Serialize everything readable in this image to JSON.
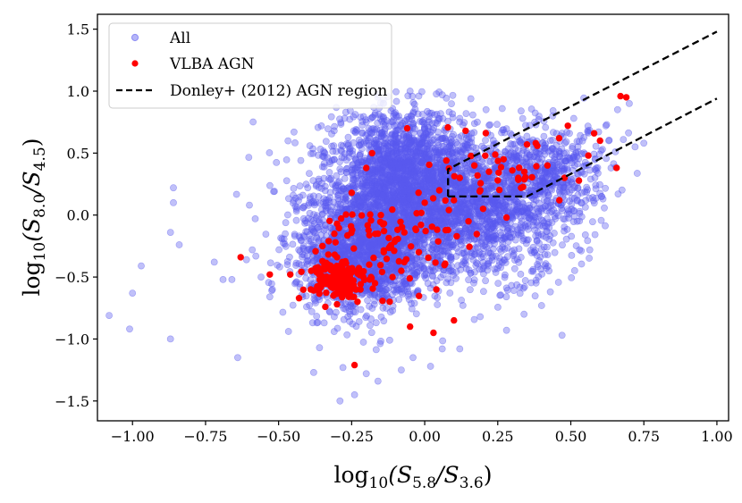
{
  "chart_data": {
    "type": "scatter",
    "title": "",
    "xlabel": {
      "base": "log",
      "base_sub": "10",
      "open": "(S",
      "num_sub": "5.8",
      "mid": "/S",
      "den_sub": "3.6",
      "close": ")"
    },
    "ylabel": {
      "base": "log",
      "base_sub": "10",
      "open": "(S",
      "num_sub": "8.0",
      "mid": "/S",
      "den_sub": "4.5",
      "close": ")"
    },
    "xlim": [
      -1.12,
      1.04
    ],
    "ylim": [
      -1.66,
      1.62
    ],
    "xticks": [
      -1.0,
      -0.75,
      -0.5,
      -0.25,
      0.0,
      0.25,
      0.5,
      0.75,
      1.0
    ],
    "xtick_labels": [
      "−1.00",
      "−0.75",
      "−0.50",
      "−0.25",
      "0.00",
      "0.25",
      "0.50",
      "0.75",
      "1.00"
    ],
    "yticks": [
      -1.5,
      -1.0,
      -0.5,
      0.0,
      0.5,
      1.0,
      1.5
    ],
    "ytick_labels": [
      "−1.5",
      "−1.0",
      "−0.5",
      "0.0",
      "0.5",
      "1.0",
      "1.5"
    ],
    "grid": false,
    "legend_position": "top-left",
    "colors": {
      "all": "#5a5af0",
      "vlba": "#ff0000",
      "line": "#000000"
    },
    "series": [
      {
        "name": "All",
        "kind": "scatter",
        "note_density": "dense cloud",
        "points": [
          [
            -1.08,
            -0.81
          ],
          [
            -1.01,
            -0.92
          ],
          [
            -1.0,
            -0.63
          ],
          [
            -0.97,
            -0.41
          ],
          [
            -0.87,
            -1.0
          ],
          [
            -0.86,
            0.22
          ],
          [
            -0.86,
            0.1
          ],
          [
            -0.84,
            -0.24
          ],
          [
            -0.87,
            -0.14
          ],
          [
            -0.72,
            -0.38
          ],
          [
            -0.69,
            -0.52
          ],
          [
            -0.66,
            -0.52
          ],
          [
            -0.61,
            -0.36
          ],
          [
            -0.59,
            -0.28
          ],
          [
            -0.6,
            0.08
          ],
          [
            -0.58,
            -0.03
          ],
          [
            -0.56,
            -0.5
          ],
          [
            -0.53,
            -0.66
          ],
          [
            -0.47,
            -0.4
          ],
          [
            -0.45,
            0.16
          ],
          [
            -0.43,
            -0.17
          ],
          [
            -0.4,
            0.22
          ],
          [
            -0.38,
            -1.27
          ],
          [
            -0.36,
            -1.07
          ],
          [
            -0.35,
            0.39
          ],
          [
            -0.31,
            -0.94
          ],
          [
            -0.28,
            -1.23
          ],
          [
            -0.24,
            -1.45
          ],
          [
            -0.29,
            -1.5
          ],
          [
            -0.2,
            -1.28
          ],
          [
            -0.16,
            -1.34
          ],
          [
            -0.12,
            -1.01
          ],
          [
            -0.08,
            -1.25
          ],
          [
            -0.04,
            -1.15
          ],
          [
            0.02,
            -1.22
          ],
          [
            0.06,
            -1.08
          ],
          [
            -0.64,
            -1.15
          ],
          [
            0.12,
            -1.08
          ],
          [
            0.19,
            -0.82
          ],
          [
            0.28,
            -0.93
          ],
          [
            0.34,
            -0.8
          ],
          [
            0.47,
            -0.97
          ],
          [
            0.43,
            -0.62
          ],
          [
            0.4,
            -0.73
          ],
          [
            0.53,
            -0.28
          ],
          [
            0.55,
            -0.16
          ],
          [
            0.61,
            0.13
          ],
          [
            0.63,
            0.6
          ],
          [
            0.66,
            0.85
          ],
          [
            0.7,
            0.9
          ],
          [
            0.72,
            0.55
          ],
          [
            0.75,
            0.58
          ],
          [
            0.68,
            0.61
          ],
          [
            0.62,
            0.72
          ],
          [
            0.51,
            0.78
          ],
          [
            0.47,
            0.66
          ],
          [
            0.39,
            0.77
          ],
          [
            0.33,
            0.84
          ],
          [
            0.21,
            0.85
          ],
          [
            0.18,
            0.75
          ],
          [
            0.12,
            0.78
          ],
          [
            0.06,
            0.97
          ],
          [
            -0.05,
            1.0
          ],
          [
            -0.14,
            0.9
          ],
          [
            -0.2,
            0.75
          ],
          [
            -0.27,
            0.83
          ],
          [
            -0.31,
            0.68
          ],
          [
            -0.22,
            0.79
          ],
          [
            -0.11,
            0.86
          ],
          [
            0.0,
            0.69
          ],
          [
            0.09,
            0.58
          ],
          [
            0.16,
            0.62
          ]
        ]
      },
      {
        "name": "VLBA AGN",
        "kind": "scatter",
        "points": [
          [
            -0.63,
            -0.34
          ],
          [
            -0.53,
            -0.48
          ],
          [
            -0.46,
            -0.48
          ],
          [
            -0.43,
            -0.67
          ],
          [
            -0.39,
            -0.6
          ],
          [
            -0.37,
            -0.46
          ],
          [
            -0.35,
            -0.56
          ],
          [
            -0.33,
            -0.4
          ],
          [
            -0.31,
            -0.5
          ],
          [
            -0.29,
            -0.62
          ],
          [
            -0.27,
            -0.55
          ],
          [
            -0.25,
            -0.45
          ],
          [
            -0.23,
            -0.7
          ],
          [
            -0.21,
            -0.5
          ],
          [
            -0.19,
            -0.4
          ],
          [
            -0.17,
            -0.55
          ],
          [
            -0.34,
            -0.74
          ],
          [
            -0.3,
            -0.34
          ],
          [
            -0.36,
            -0.52
          ],
          [
            -0.32,
            -0.58
          ],
          [
            -0.28,
            -0.44
          ],
          [
            -0.26,
            -0.66
          ],
          [
            -0.22,
            -0.6
          ],
          [
            -0.24,
            -1.21
          ],
          [
            -0.3,
            -0.72
          ],
          [
            -0.12,
            -0.7
          ],
          [
            -0.05,
            -0.9
          ],
          [
            0.03,
            -0.95
          ],
          [
            0.1,
            -0.85
          ],
          [
            -0.08,
            -0.45
          ],
          [
            -0.02,
            -0.3
          ],
          [
            0.04,
            -0.6
          ],
          [
            0.08,
            -0.12
          ],
          [
            0.15,
            -0.05
          ],
          [
            0.2,
            0.05
          ],
          [
            0.28,
            -0.02
          ],
          [
            -0.35,
            -0.25
          ],
          [
            -0.3,
            -0.07
          ],
          [
            -0.25,
            0.18
          ],
          [
            -0.15,
            0.0
          ],
          [
            -0.1,
            -0.2
          ],
          [
            0.0,
            0.1
          ],
          [
            -0.06,
            0.7
          ],
          [
            -0.18,
            0.5
          ],
          [
            -0.2,
            0.38
          ],
          [
            0.12,
            0.3
          ],
          [
            0.17,
            0.4
          ],
          [
            0.22,
            0.35
          ],
          [
            0.27,
            0.45
          ],
          [
            0.3,
            0.36
          ],
          [
            0.32,
            0.3
          ],
          [
            0.35,
            0.57
          ],
          [
            0.38,
            0.58
          ],
          [
            0.42,
            0.4
          ],
          [
            0.46,
            0.62
          ],
          [
            0.49,
            0.72
          ],
          [
            0.56,
            0.48
          ],
          [
            0.58,
            0.66
          ],
          [
            0.6,
            0.6
          ],
          [
            0.67,
            0.96
          ],
          [
            0.69,
            0.95
          ],
          [
            0.14,
            0.68
          ],
          [
            0.19,
            0.2
          ],
          [
            0.25,
            0.28
          ],
          [
            0.33,
            0.22
          ],
          [
            0.1,
            0.12
          ],
          [
            0.05,
            0.2
          ],
          [
            -0.03,
            -0.12
          ],
          [
            -0.07,
            -0.38
          ],
          [
            -0.11,
            -0.5
          ],
          [
            -0.14,
            -0.3
          ],
          [
            -0.16,
            -0.15
          ]
        ]
      },
      {
        "name": "Donley+ (2012) AGN region",
        "kind": "line",
        "paths": [
          [
            [
              0.08,
              0.15
            ],
            [
              0.08,
              0.37
            ],
            [
              1.0,
              1.48
            ]
          ],
          [
            [
              0.08,
              0.15
            ],
            [
              0.35,
              0.15
            ],
            [
              1.0,
              0.94
            ]
          ]
        ]
      }
    ]
  }
}
